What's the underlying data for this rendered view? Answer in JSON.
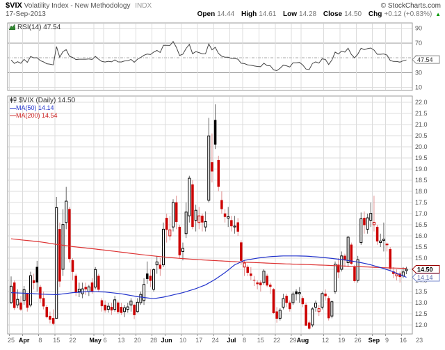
{
  "header": {
    "symbol": "$VIX",
    "name": "Volatility Index - New Methodology",
    "exchange": "INDX",
    "date": "17-Sep-2013",
    "copyright": "© StockCharts.com",
    "quote": {
      "open_label": "Open",
      "open": "14.44",
      "high_label": "High",
      "high": "14.61",
      "low_label": "Low",
      "low": "14.28",
      "close_label": "Close",
      "close": "14.50",
      "chg_label": "Chg",
      "chg": "+0.12 (+0.83%)",
      "direction": "▲"
    }
  },
  "rsi_panel": {
    "label": "RSI(14) 47.54",
    "last_value": 47.54,
    "axis_labels": [
      90,
      70,
      50,
      30,
      10
    ]
  },
  "legend": {
    "symbol_line": "$VIX (Daily) 14.50",
    "ma50_dash": "—",
    "ma50_label": "MA(50) 14.14",
    "ma200_dash": "—",
    "ma200_label": "MA(200) 14.54"
  },
  "price_boxes": {
    "last": "14.50",
    "ma50": "14.14",
    "rsi": "47.54"
  },
  "colors": {
    "candle_up": "#000000",
    "candle_down": "#cc0000",
    "wick_up": "#666666",
    "wick_down": "#e09090",
    "ma50": "#2233cc",
    "ma200": "#dd3333",
    "rsi_line": "#444444",
    "grid": "#dcdcdc",
    "grid_dark": "#999999",
    "panel_border": "#999999",
    "axis_text": "#555555",
    "month_text": "#000000",
    "day_text": "#666666",
    "last_box_border": "#990000",
    "ma_box_border": "#7788cc",
    "rsi_box_border": "#888888",
    "chg_green": "#009900"
  },
  "chart_data": {
    "type": "candlestick",
    "title": "$VIX (Daily)",
    "y_axis": {
      "min": 12.0,
      "max": 22.0,
      "step": 0.5
    },
    "rsi": {
      "period": 14,
      "seed_avg_gain": 0.32,
      "seed_avg_loss": 0.36,
      "grid": [
        90,
        70,
        50,
        30,
        10
      ]
    },
    "x_labels": [
      {
        "t": "25",
        "d": 0,
        "m": false
      },
      {
        "t": "Apr",
        "d": 4,
        "m": true
      },
      {
        "t": "8",
        "d": 9,
        "m": false
      },
      {
        "t": "15",
        "d": 14,
        "m": false
      },
      {
        "t": "22",
        "d": 19,
        "m": false
      },
      {
        "t": "May",
        "d": 26,
        "m": true
      },
      {
        "t": "6",
        "d": 29,
        "m": false
      },
      {
        "t": "13",
        "d": 34,
        "m": false
      },
      {
        "t": "20",
        "d": 39,
        "m": false
      },
      {
        "t": "28",
        "d": 44,
        "m": false
      },
      {
        "t": "Jun",
        "d": 48,
        "m": true
      },
      {
        "t": "10",
        "d": 53,
        "m": false
      },
      {
        "t": "17",
        "d": 58,
        "m": false
      },
      {
        "t": "24",
        "d": 63,
        "m": false
      },
      {
        "t": "Jul",
        "d": 68,
        "m": true
      },
      {
        "t": "8",
        "d": 72,
        "m": false
      },
      {
        "t": "15",
        "d": 77,
        "m": false
      },
      {
        "t": "22",
        "d": 82,
        "m": false
      },
      {
        "t": "29",
        "d": 87,
        "m": false
      },
      {
        "t": "Aug",
        "d": 90,
        "m": true
      },
      {
        "t": "12",
        "d": 97,
        "m": false
      },
      {
        "t": "19",
        "d": 102,
        "m": false
      },
      {
        "t": "26",
        "d": 107,
        "m": false
      },
      {
        "t": "Sep",
        "d": 112,
        "m": true
      },
      {
        "t": "9",
        "d": 116,
        "m": false
      },
      {
        "t": "16",
        "d": 121,
        "m": false
      },
      {
        "t": "23",
        "d": 126,
        "m": false
      }
    ],
    "dates": [
      "Mar 25",
      "Mar 26",
      "Mar 27",
      "Mar 28",
      "Apr 1",
      "Apr 2",
      "Apr 3",
      "Apr 4",
      "Apr 5",
      "Apr 8",
      "Apr 9",
      "Apr 10",
      "Apr 11",
      "Apr 12",
      "Apr 15",
      "Apr 16",
      "Apr 17",
      "Apr 18",
      "Apr 19",
      "Apr 22",
      "Apr 23",
      "Apr 24",
      "Apr 25",
      "Apr 26",
      "Apr 29",
      "Apr 30",
      "May 1",
      "May 2",
      "May 3",
      "May 6",
      "May 7",
      "May 8",
      "May 9",
      "May 10",
      "May 13",
      "May 14",
      "May 15",
      "May 16",
      "May 17",
      "May 20",
      "May 21",
      "May 22",
      "May 23",
      "May 24",
      "May 28",
      "May 29",
      "May 30",
      "May 31",
      "Jun 3",
      "Jun 4",
      "Jun 5",
      "Jun 6",
      "Jun 7",
      "Jun 10",
      "Jun 11",
      "Jun 12",
      "Jun 13",
      "Jun 14",
      "Jun 17",
      "Jun 18",
      "Jun 19",
      "Jun 20",
      "Jun 21",
      "Jun 24",
      "Jun 25",
      "Jun 26",
      "Jun 27",
      "Jun 28",
      "Jul 1",
      "Jul 2",
      "Jul 3",
      "Jul 5",
      "Jul 8",
      "Jul 9",
      "Jul 10",
      "Jul 11",
      "Jul 12",
      "Jul 15",
      "Jul 16",
      "Jul 17",
      "Jul 18",
      "Jul 19",
      "Jul 22",
      "Jul 23",
      "Jul 24",
      "Jul 25",
      "Jul 26",
      "Jul 29",
      "Jul 30",
      "Jul 31",
      "Aug 1",
      "Aug 2",
      "Aug 5",
      "Aug 6",
      "Aug 7",
      "Aug 8",
      "Aug 9",
      "Aug 12",
      "Aug 13",
      "Aug 14",
      "Aug 15",
      "Aug 16",
      "Aug 19",
      "Aug 20",
      "Aug 21",
      "Aug 22",
      "Aug 23",
      "Aug 26",
      "Aug 27",
      "Aug 28",
      "Aug 29",
      "Aug 30",
      "Sep 3",
      "Sep 4",
      "Sep 5",
      "Sep 6",
      "Sep 9",
      "Sep 10",
      "Sep 11",
      "Sep 12",
      "Sep 13",
      "Sep 16",
      "Sep 17"
    ],
    "ohlc": [
      [
        13.0,
        14.18,
        12.95,
        13.74
      ],
      [
        13.9,
        14.0,
        12.67,
        12.77
      ],
      [
        12.9,
        13.6,
        12.75,
        13.15
      ],
      [
        13.0,
        13.3,
        12.62,
        12.7
      ],
      [
        13.1,
        13.75,
        12.9,
        13.58
      ],
      [
        13.4,
        13.45,
        12.6,
        12.78
      ],
      [
        12.9,
        14.39,
        12.8,
        14.21
      ],
      [
        14.0,
        14.3,
        13.6,
        13.89
      ],
      [
        14.6,
        14.88,
        13.5,
        13.92
      ],
      [
        13.7,
        13.8,
        13.0,
        13.19
      ],
      [
        13.2,
        13.5,
        12.7,
        12.84
      ],
      [
        12.8,
        12.9,
        12.3,
        12.36
      ],
      [
        12.4,
        12.6,
        12.07,
        12.24
      ],
      [
        12.3,
        12.7,
        11.99,
        12.06
      ],
      [
        12.3,
        17.75,
        12.3,
        17.27
      ],
      [
        16.3,
        16.6,
        13.7,
        13.96
      ],
      [
        14.5,
        17.2,
        14.2,
        16.51
      ],
      [
        16.6,
        18.2,
        16.3,
        17.56
      ],
      [
        17.2,
        17.3,
        14.8,
        14.97
      ],
      [
        14.9,
        15.0,
        14.0,
        14.39
      ],
      [
        14.2,
        14.3,
        13.3,
        13.48
      ],
      [
        13.5,
        13.9,
        13.25,
        13.61
      ],
      [
        13.4,
        13.9,
        13.2,
        13.62
      ],
      [
        13.7,
        13.9,
        13.35,
        13.61
      ],
      [
        13.5,
        13.8,
        13.3,
        13.71
      ],
      [
        13.9,
        14.1,
        13.4,
        13.52
      ],
      [
        13.7,
        14.6,
        13.6,
        14.49
      ],
      [
        14.2,
        14.3,
        13.5,
        13.59
      ],
      [
        13.1,
        13.2,
        12.6,
        12.85
      ],
      [
        12.9,
        13.1,
        12.55,
        12.66
      ],
      [
        12.7,
        13.0,
        12.55,
        12.84
      ],
      [
        12.8,
        13.0,
        12.45,
        12.66
      ],
      [
        12.7,
        13.3,
        12.6,
        13.13
      ],
      [
        13.0,
        13.1,
        12.5,
        12.59
      ],
      [
        12.8,
        13.0,
        12.45,
        12.55
      ],
      [
        12.6,
        12.9,
        12.35,
        12.77
      ],
      [
        12.7,
        13.0,
        12.55,
        12.81
      ],
      [
        12.9,
        13.2,
        12.6,
        13.07
      ],
      [
        12.9,
        12.95,
        12.26,
        12.45
      ],
      [
        12.6,
        13.2,
        12.55,
        13.02
      ],
      [
        13.0,
        13.5,
        12.9,
        13.37
      ],
      [
        13.1,
        14.1,
        12.9,
        13.82
      ],
      [
        14.3,
        14.85,
        13.85,
        14.07
      ],
      [
        14.2,
        14.5,
        13.7,
        13.99
      ],
      [
        13.6,
        14.55,
        13.5,
        14.48
      ],
      [
        14.7,
        15.1,
        14.3,
        14.83
      ],
      [
        14.7,
        15.0,
        14.2,
        14.53
      ],
      [
        14.7,
        16.6,
        14.6,
        16.3
      ],
      [
        16.8,
        17.0,
        15.7,
        16.28
      ],
      [
        16.0,
        16.9,
        15.8,
        16.27
      ],
      [
        16.4,
        17.65,
        16.2,
        17.5
      ],
      [
        17.5,
        17.8,
        16.3,
        16.63
      ],
      [
        16.4,
        16.5,
        15.0,
        15.14
      ],
      [
        15.3,
        15.7,
        14.9,
        15.44
      ],
      [
        16.1,
        17.5,
        15.9,
        17.07
      ],
      [
        16.9,
        18.7,
        16.6,
        18.59
      ],
      [
        18.3,
        18.5,
        16.3,
        16.41
      ],
      [
        16.7,
        17.4,
        16.2,
        17.15
      ],
      [
        16.6,
        17.3,
        16.3,
        16.9
      ],
      [
        16.9,
        17.0,
        16.2,
        16.61
      ],
      [
        16.4,
        17.1,
        16.2,
        16.64
      ],
      [
        17.6,
        21.3,
        17.5,
        20.49
      ],
      [
        19.3,
        20.6,
        18.4,
        18.9
      ],
      [
        21.2,
        21.91,
        19.9,
        20.11
      ],
      [
        19.4,
        19.6,
        18.0,
        18.21
      ],
      [
        17.6,
        18.0,
        17.0,
        17.21
      ],
      [
        17.0,
        17.2,
        16.6,
        16.86
      ],
      [
        16.8,
        17.3,
        16.4,
        16.86
      ],
      [
        16.7,
        16.9,
        16.2,
        16.44
      ],
      [
        16.4,
        16.9,
        16.1,
        16.44
      ],
      [
        16.6,
        16.8,
        16.0,
        16.2
      ],
      [
        15.7,
        15.8,
        14.7,
        14.89
      ],
      [
        14.6,
        14.9,
        14.2,
        14.78
      ],
      [
        14.6,
        14.7,
        14.2,
        14.35
      ],
      [
        14.3,
        14.6,
        14.0,
        14.21
      ],
      [
        14.0,
        14.2,
        13.75,
        14.01
      ],
      [
        13.9,
        14.0,
        13.6,
        13.84
      ],
      [
        13.9,
        14.0,
        13.5,
        13.79
      ],
      [
        13.9,
        14.5,
        13.8,
        14.42
      ],
      [
        14.2,
        14.3,
        13.7,
        13.78
      ],
      [
        13.8,
        13.9,
        13.4,
        13.72
      ],
      [
        13.6,
        13.65,
        12.5,
        12.54
      ],
      [
        12.6,
        12.8,
        12.1,
        12.29
      ],
      [
        12.3,
        12.75,
        12.2,
        12.66
      ],
      [
        12.8,
        13.4,
        12.7,
        13.18
      ],
      [
        13.3,
        13.4,
        12.8,
        13.0
      ],
      [
        13.0,
        13.1,
        12.6,
        12.72
      ],
      [
        13.0,
        13.5,
        12.9,
        13.39
      ],
      [
        13.5,
        13.6,
        13.1,
        13.39
      ],
      [
        13.4,
        13.7,
        13.0,
        13.45
      ],
      [
        13.2,
        13.3,
        12.8,
        12.94
      ],
      [
        12.9,
        13.0,
        11.95,
        11.98
      ],
      [
        12.1,
        12.2,
        11.79,
        11.84
      ],
      [
        12.0,
        12.8,
        11.9,
        12.72
      ],
      [
        12.8,
        13.1,
        12.6,
        12.98
      ],
      [
        12.6,
        12.9,
        12.4,
        12.73
      ],
      [
        12.8,
        13.5,
        12.7,
        13.41
      ],
      [
        13.4,
        13.6,
        13.1,
        13.3
      ],
      [
        13.2,
        13.3,
        12.2,
        12.31
      ],
      [
        12.4,
        13.1,
        12.3,
        13.04
      ],
      [
        13.5,
        14.85,
        13.4,
        14.73
      ],
      [
        14.7,
        15.0,
        14.1,
        14.37
      ],
      [
        14.5,
        15.3,
        14.4,
        15.1
      ],
      [
        15.1,
        15.2,
        14.6,
        14.91
      ],
      [
        14.8,
        16.0,
        14.6,
        15.94
      ],
      [
        15.6,
        15.7,
        14.7,
        14.76
      ],
      [
        14.6,
        14.7,
        13.9,
        13.98
      ],
      [
        14.0,
        15.1,
        13.9,
        14.93
      ],
      [
        15.7,
        17.05,
        15.6,
        16.77
      ],
      [
        16.8,
        17.1,
        16.1,
        16.49
      ],
      [
        16.3,
        17.0,
        16.1,
        16.81
      ],
      [
        16.7,
        17.5,
        16.4,
        17.01
      ],
      [
        16.5,
        17.8,
        16.2,
        16.61
      ],
      [
        16.4,
        16.5,
        15.6,
        15.76
      ],
      [
        15.7,
        16.1,
        15.5,
        15.77
      ],
      [
        15.8,
        16.6,
        15.3,
        15.85
      ],
      [
        15.6,
        15.7,
        15.3,
        15.63
      ],
      [
        15.4,
        15.5,
        14.4,
        14.53
      ],
      [
        14.4,
        14.6,
        14.1,
        14.3
      ],
      [
        14.2,
        14.5,
        14.0,
        14.29
      ],
      [
        14.3,
        14.4,
        13.9,
        14.16
      ],
      [
        14.2,
        14.6,
        14.1,
        14.38
      ],
      [
        14.44,
        14.61,
        14.28,
        14.5
      ]
    ],
    "ma50_anchors": [
      [
        0,
        13.45
      ],
      [
        5,
        13.42
      ],
      [
        10,
        13.38
      ],
      [
        14,
        13.36
      ],
      [
        19,
        13.45
      ],
      [
        24,
        13.5
      ],
      [
        29,
        13.48
      ],
      [
        34,
        13.4
      ],
      [
        39,
        13.27
      ],
      [
        44,
        13.18
      ],
      [
        47,
        13.25
      ],
      [
        50,
        13.35
      ],
      [
        53,
        13.45
      ],
      [
        57,
        13.63
      ],
      [
        60,
        13.8
      ],
      [
        63,
        14.05
      ],
      [
        66,
        14.35
      ],
      [
        69,
        14.7
      ],
      [
        72,
        14.9
      ],
      [
        76,
        15.0
      ],
      [
        80,
        15.07
      ],
      [
        84,
        15.1
      ],
      [
        88,
        15.1
      ],
      [
        91,
        15.09
      ],
      [
        94,
        15.06
      ],
      [
        97,
        15.02
      ],
      [
        100,
        14.97
      ],
      [
        103,
        14.92
      ],
      [
        106,
        14.85
      ],
      [
        109,
        14.77
      ],
      [
        111,
        14.7
      ],
      [
        113,
        14.62
      ],
      [
        115,
        14.53
      ],
      [
        117,
        14.44
      ],
      [
        119,
        14.32
      ],
      [
        121,
        14.2
      ],
      [
        122,
        14.14
      ]
    ],
    "ma200_anchors": [
      [
        0,
        15.87
      ],
      [
        9,
        15.73
      ],
      [
        14,
        15.62
      ],
      [
        19,
        15.52
      ],
      [
        24,
        15.44
      ],
      [
        29,
        15.36
      ],
      [
        34,
        15.27
      ],
      [
        39,
        15.18
      ],
      [
        44,
        15.1
      ],
      [
        48,
        15.04
      ],
      [
        53,
        14.98
      ],
      [
        58,
        14.93
      ],
      [
        63,
        14.89
      ],
      [
        68,
        14.85
      ],
      [
        72,
        14.82
      ],
      [
        77,
        14.79
      ],
      [
        82,
        14.76
      ],
      [
        87,
        14.73
      ],
      [
        92,
        14.71
      ],
      [
        97,
        14.68
      ],
      [
        102,
        14.65
      ],
      [
        107,
        14.62
      ],
      [
        112,
        14.59
      ],
      [
        117,
        14.56
      ],
      [
        122,
        14.54
      ]
    ]
  }
}
